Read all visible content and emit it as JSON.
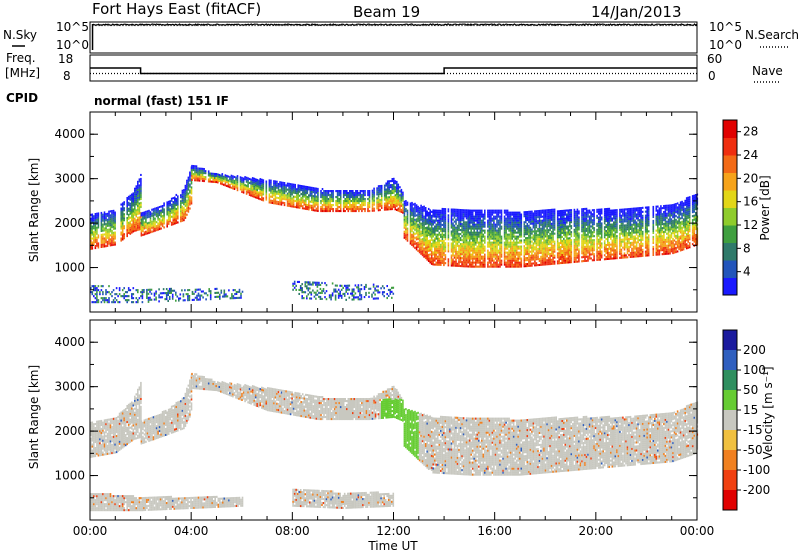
{
  "header": {
    "station": "Fort Hays East (fitACF)",
    "beam": "Beam 19",
    "date": "14/Jan/2013"
  },
  "noise_panel": {
    "left_title": "N.Sky",
    "right_title": "N.Search",
    "tick_labels": [
      "10^5",
      "10^0"
    ]
  },
  "freq_panel": {
    "left_title_lines": [
      "Freq.",
      "[MHz]"
    ],
    "right_title": "Nave",
    "left_tick_labels": [
      "18",
      "8"
    ],
    "right_tick_labels": [
      "60",
      "0"
    ]
  },
  "cpid": {
    "label": "CPID",
    "mode": "normal (fast) 151 IF"
  },
  "x_axis": {
    "label": "Time UT",
    "tick_labels": [
      "00:00",
      "04:00",
      "08:00",
      "12:00",
      "16:00",
      "20:00",
      "00:00"
    ]
  },
  "chart_data": [
    {
      "type": "line",
      "title": "",
      "series": [
        {
          "name": "N.Sky",
          "x_hours": [
            0.05,
            0.1,
            24
          ],
          "values_log10": [
            0,
            5.2,
            5.2
          ]
        },
        {
          "name": "N.Search",
          "x_hours": [
            0.1,
            24
          ],
          "values_log10": [
            4.9,
            4.9
          ]
        }
      ],
      "ylim_log10": [
        0,
        5
      ]
    },
    {
      "type": "line",
      "series": [
        {
          "name": "Freq.",
          "unit": "MHz",
          "x_hours": [
            0,
            2,
            2,
            14,
            14,
            24
          ],
          "values": [
            13,
            13,
            10.5,
            10.5,
            13,
            13
          ]
        },
        {
          "name": "Nave",
          "x_hours": [
            0,
            24
          ],
          "values": [
            13,
            13
          ]
        }
      ],
      "ylim": [
        8,
        18
      ]
    },
    {
      "type": "heatmap",
      "quantity": "Power",
      "ylabel": "Slant Range [km]",
      "xlabel": "Time UT",
      "xlim_hours": [
        0,
        24
      ],
      "ylim_km": [
        0,
        4500
      ],
      "y_tick_labels": [
        "1000",
        "2000",
        "3000",
        "4000"
      ],
      "colorbar": {
        "label": "Power [dB]",
        "tick_labels": [
          "4",
          "8",
          "12",
          "16",
          "20",
          "24",
          "28"
        ],
        "range": [
          0,
          30
        ],
        "colors": [
          "#1a1aff",
          "#2255bb",
          "#2f7a6a",
          "#3f9f3f",
          "#8fcc2c",
          "#e2d617",
          "#f6a31a",
          "#f36a16",
          "#ef2e0f",
          "#e00000"
        ]
      },
      "echo_bands": [
        {
          "t_hours": [
            0.0,
            1.0,
            1.7,
            2.0
          ],
          "lower_km": [
            1400,
            1500,
            1800,
            1850
          ],
          "upper_km": [
            2200,
            2300,
            2700,
            3100
          ]
        },
        {
          "t_hours": [
            2.0,
            3.0,
            3.7,
            4.0
          ],
          "lower_km": [
            1700,
            1900,
            2050,
            2400
          ],
          "upper_km": [
            2200,
            2450,
            2750,
            3300
          ]
        },
        {
          "t_hours": [
            4.0,
            5.0,
            7.0,
            9.0,
            11.0,
            12.0,
            12.4
          ],
          "lower_km": [
            2950,
            2900,
            2450,
            2250,
            2250,
            2300,
            2200
          ],
          "upper_km": [
            3300,
            3100,
            2950,
            2750,
            2700,
            3000,
            2650
          ]
        },
        {
          "t_hours": [
            12.4,
            13.5,
            15.0,
            17.0,
            19.0,
            21.0,
            23.0,
            24.0
          ],
          "lower_km": [
            1650,
            1050,
            1000,
            1000,
            1100,
            1200,
            1300,
            1500
          ],
          "upper_km": [
            2500,
            2300,
            2300,
            2250,
            2300,
            2300,
            2400,
            2650
          ]
        },
        {
          "t_hours": [
            0.0,
            2.0,
            4.0,
            6.0
          ],
          "lower_km": [
            200,
            200,
            250,
            300
          ],
          "upper_km": [
            600,
            500,
            500,
            500
          ]
        },
        {
          "t_hours": [
            8.0,
            10.0,
            12.0
          ],
          "lower_km": [
            300,
            250,
            300
          ],
          "upper_km": [
            700,
            600,
            600
          ]
        }
      ]
    },
    {
      "type": "heatmap",
      "quantity": "Velocity",
      "ylabel": "Slant Range [km]",
      "xlabel": "Time UT",
      "xlim_hours": [
        0,
        24
      ],
      "ylim_km": [
        0,
        4500
      ],
      "y_tick_labels": [
        "1000",
        "2000",
        "3000",
        "4000"
      ],
      "colorbar": {
        "label": "Velocity [m s⁻¹]",
        "tick_labels": [
          "200",
          "100",
          "50",
          "15",
          "-15",
          "-50",
          "-100",
          "-200"
        ],
        "colors": [
          "#1b1b9e",
          "#2f5fbf",
          "#2f8f5f",
          "#66cc33",
          "#c8c8c0",
          "#f0c040",
          "#f08020",
          "#f04010",
          "#e00000"
        ]
      },
      "ground_scatter_color": "#c8c8c0",
      "flow_region": {
        "t_hours": [
          11.5,
          13.0
        ],
        "range_km": [
          1300,
          2700
        ],
        "color": "#66cc33"
      }
    }
  ]
}
